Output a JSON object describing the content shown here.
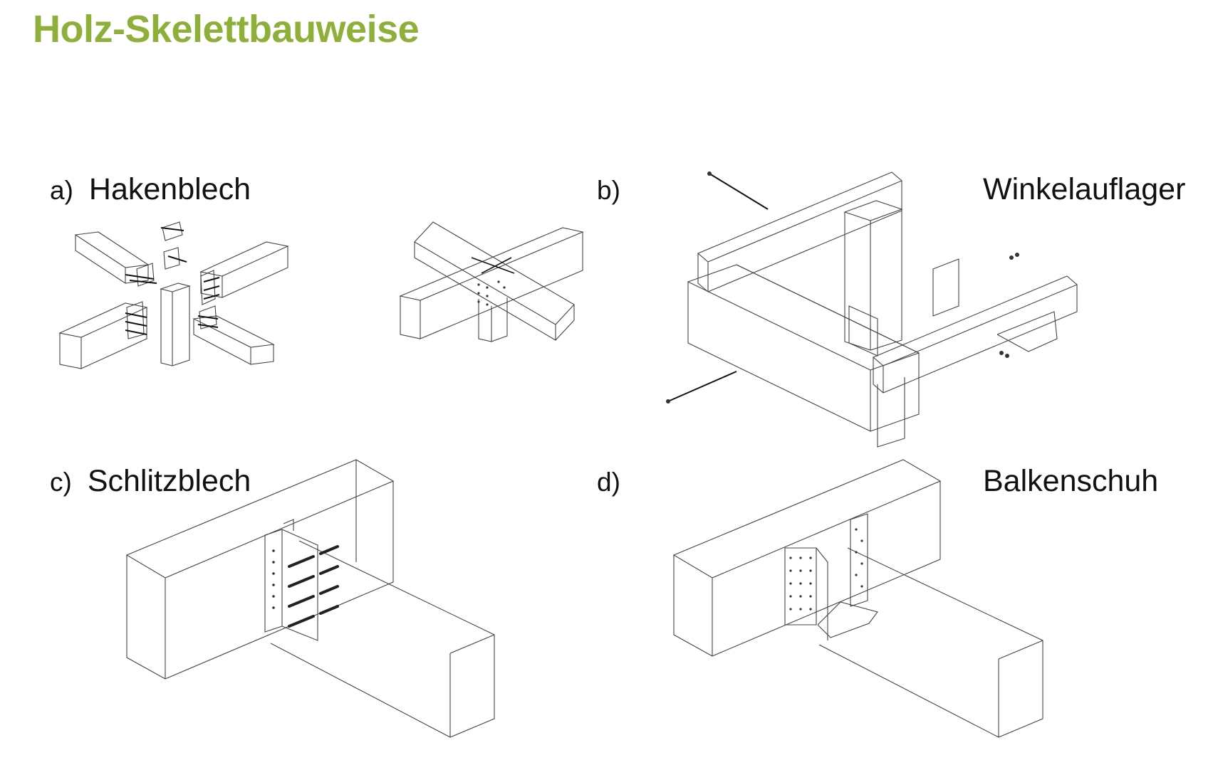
{
  "title": "Holz-Skelettbauweise",
  "title_color": "#8eaf3a",
  "figures": [
    {
      "letter": "a)",
      "label": "Hakenblech"
    },
    {
      "letter": "b)",
      "label": "Winkelauflager"
    },
    {
      "letter": "c)",
      "label": "Schlitzblech"
    },
    {
      "letter": "d)",
      "label": "Balkenschuh"
    }
  ]
}
